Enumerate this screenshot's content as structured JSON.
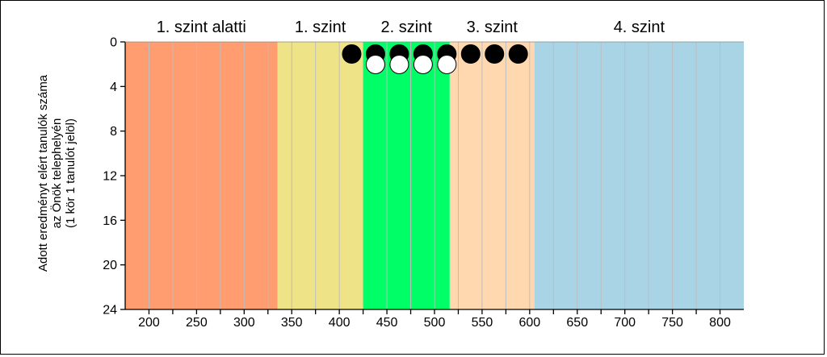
{
  "chart_data": {
    "type": "scatter",
    "title": "",
    "ylabel_lines": [
      "Adott eredményt elért tanulók száma",
      "az Önök telephelyén",
      "(1 kör 1 tanulót jelöl)"
    ],
    "xlabel": "",
    "xlim": [
      175,
      825
    ],
    "ylim": [
      0,
      24
    ],
    "y_inverted": true,
    "x_ticks": [
      200,
      250,
      300,
      350,
      400,
      450,
      500,
      550,
      600,
      650,
      700,
      750,
      800
    ],
    "y_ticks": [
      0,
      4,
      8,
      12,
      16,
      20,
      24
    ],
    "levels": [
      {
        "label": "1. szint alatti",
        "from": 175,
        "to": 335,
        "color": "#FF9C70"
      },
      {
        "label": "1. szint",
        "from": 335,
        "to": 425,
        "color": "#EEE386"
      },
      {
        "label": "2. szint",
        "from": 425,
        "to": 516,
        "color": "#00FF66"
      },
      {
        "label": "3. szint",
        "from": 516,
        "to": 605,
        "color": "#FFD8B0"
      },
      {
        "label": "4. szint",
        "from": 605,
        "to": 825,
        "color": "#A8D4E6"
      }
    ],
    "grid": "vertical",
    "series": [
      {
        "fill": "#000000",
        "points": [
          [
            413,
            1
          ],
          [
            438,
            1
          ],
          [
            463,
            1
          ],
          [
            488,
            1
          ],
          [
            513,
            1
          ],
          [
            538,
            1
          ],
          [
            563,
            1
          ],
          [
            588,
            1
          ]
        ]
      },
      {
        "fill": "#ffffff",
        "points": [
          [
            438,
            2
          ],
          [
            463,
            2
          ],
          [
            488,
            2
          ],
          [
            513,
            2
          ]
        ]
      }
    ]
  }
}
